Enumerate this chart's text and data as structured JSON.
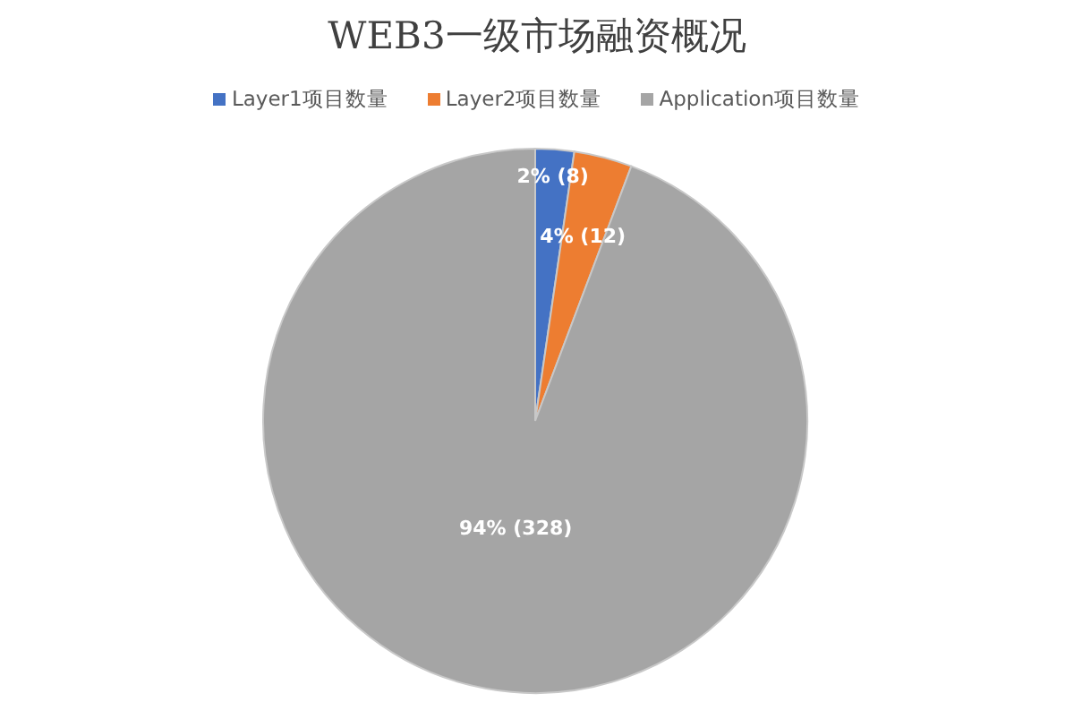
{
  "chart_data": {
    "type": "pie",
    "title": "WEB3一级市场融资概况",
    "categories": [
      "Layer1项目数量",
      "Layer2项目数量",
      "Application项目数量"
    ],
    "values": [
      8,
      12,
      328
    ],
    "colors": [
      "#4472c4",
      "#ed7d31",
      "#a5a5a5"
    ],
    "value_labels": [
      "2% (8)",
      "4% (12)",
      "94% (328)"
    ],
    "legend": "top"
  }
}
